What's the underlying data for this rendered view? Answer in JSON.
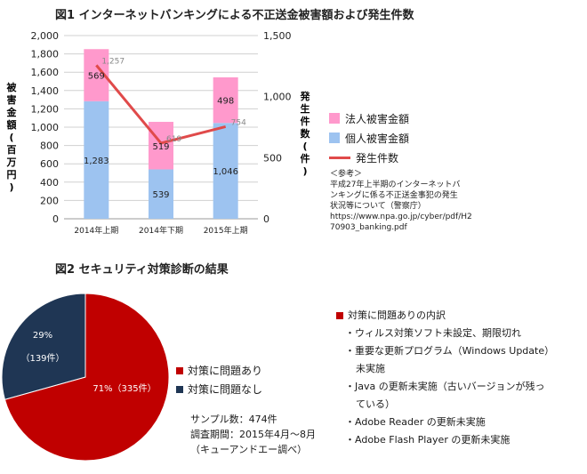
{
  "fig1": {
    "title": "図1 インターネットバンキングによる不正送金被害額および発生件数",
    "left_axis_label": "被害金額(百万円)",
    "right_axis_label": "発生件数(件)",
    "legend": {
      "corporate": "法人被害金額",
      "individual": "個人被害金額",
      "cases": "発生件数"
    },
    "reference": {
      "heading": "＜参考＞",
      "lines": [
        "平成27年上半期のインターネットバ",
        "ンキングに係る不正送金事犯の発生",
        "状況等について（警察庁）",
        "https://www.npa.go.jp/cyber/pdf/H2",
        "70903_banking.pdf"
      ]
    }
  },
  "fig2": {
    "title": "図2 セキュリティ対策診断の結果",
    "legend": [
      "対策に問題あり",
      "対策に問題なし"
    ],
    "slice_labels": {
      "no_problem_pct": "29%",
      "no_problem_count": "（139件）",
      "problem": "71%（335件）"
    },
    "sample": [
      "サンプル数：474件",
      "調査期間：2015年4月〜8月",
      "（キューアンドエー調べ）"
    ],
    "breakdown": {
      "title": "対策に問題ありの内訳",
      "items": [
        [
          "・ウィルス対策ソフト未設定、期限切れ"
        ],
        [
          "・重要な更新プログラム（Windows Update）",
          "未実施"
        ],
        [
          "・Java の更新未実施（古いバージョンが残っ",
          "ている）"
        ],
        [
          "・Adobe Reader の更新未実施"
        ],
        [
          "・Adobe Flash Player の更新未実施"
        ]
      ]
    }
  },
  "colors": {
    "corporate": "#ff99cc",
    "individual": "#9dc3f0",
    "cases": "#e04a4a",
    "problem": "#c00000",
    "no_problem": "#1f3654"
  },
  "chart_data": [
    {
      "type": "bar",
      "categories": [
        "2014年上期",
        "2014年下期",
        "2015年上期"
      ],
      "series": [
        {
          "name": "個人被害金額",
          "values": [
            1283,
            539,
            1046
          ]
        },
        {
          "name": "法人被害金額",
          "values": [
            569,
            519,
            498
          ]
        },
        {
          "name": "発生件数",
          "type": "line",
          "axis": "right",
          "values": [
            1257,
            619,
            754
          ]
        }
      ],
      "ylabel": "被害金額(百万円)",
      "y2label": "発生件数(件)",
      "ylim": [
        0,
        2000
      ],
      "yticks": [
        "0",
        "200",
        "400",
        "600",
        "800",
        "1,000",
        "1,200",
        "1,400",
        "1,600",
        "1,800",
        "2,000"
      ],
      "y2lim": [
        0,
        1500
      ],
      "y2ticks": [
        "0",
        "500",
        "1,000",
        "1,500"
      ],
      "bar_labels": {
        "individual": [
          "1,283",
          "539",
          "1,046"
        ],
        "corporate": [
          "569",
          "519",
          "498"
        ]
      },
      "line_labels": [
        "1,257",
        "619",
        "754"
      ],
      "grid": true,
      "legend_position": "right"
    },
    {
      "type": "pie",
      "labels": [
        "対策に問題あり",
        "対策に問題なし"
      ],
      "values": [
        335,
        139
      ],
      "percent": [
        71,
        29
      ]
    }
  ]
}
